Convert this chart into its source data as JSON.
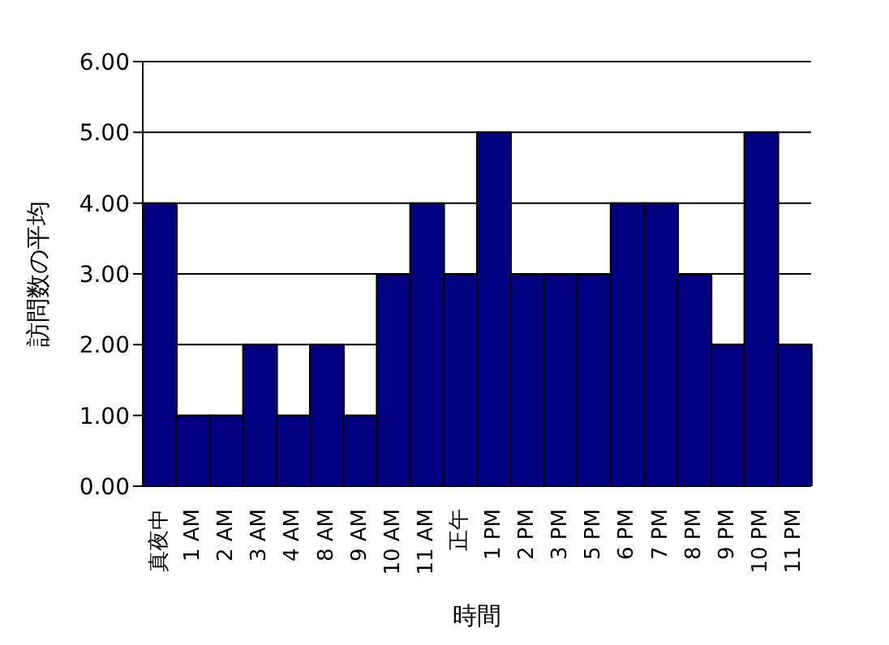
{
  "chart_data": {
    "type": "bar",
    "xlabel": "時間",
    "ylabel": "訪問数の平均",
    "categories": [
      "真夜中",
      "1 AM",
      "2 AM",
      "3 AM",
      "4 AM",
      "8 AM",
      "9 AM",
      "10 AM",
      "11 AM",
      "正午",
      "1 PM",
      "2 PM",
      "3 PM",
      "5 PM",
      "6 PM",
      "7 PM",
      "8 PM",
      "9 PM",
      "10 PM",
      "11 PM"
    ],
    "values": [
      4,
      1,
      1,
      2,
      1,
      2,
      1,
      3,
      4,
      3,
      5,
      3,
      3,
      3,
      4,
      4,
      3,
      2,
      5,
      2
    ],
    "color": "#000080",
    "ylim": [
      0,
      6
    ],
    "yticks": [
      {
        "value": 0,
        "label": "0.00"
      },
      {
        "value": 1,
        "label": "1.00"
      },
      {
        "value": 2,
        "label": "2.00"
      },
      {
        "value": 3,
        "label": "3.00"
      },
      {
        "value": 4,
        "label": "4.00"
      },
      {
        "value": 5,
        "label": "5.00"
      },
      {
        "value": 6,
        "label": "6.00"
      }
    ],
    "grid": "y"
  }
}
